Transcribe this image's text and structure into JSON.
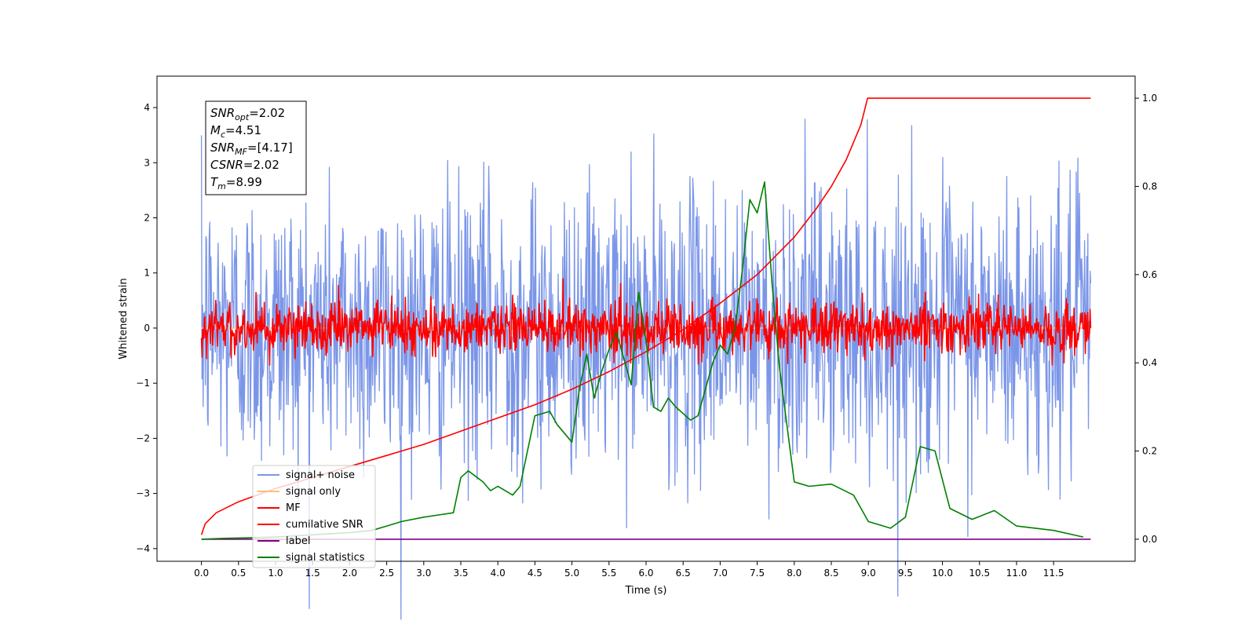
{
  "chart_data": {
    "type": "line",
    "xlabel": "Time (s)",
    "ylabel": "Whitened strain",
    "xlim": [
      -0.6,
      12.6
    ],
    "ylim": [
      -4.23,
      4.57
    ],
    "y2lim": [
      -0.05,
      1.05
    ],
    "x_ticks": [
      0.0,
      0.5,
      1.0,
      1.5,
      2.0,
      2.5,
      3.0,
      3.5,
      4.0,
      4.5,
      5.0,
      5.5,
      6.0,
      6.5,
      7.0,
      7.5,
      8.0,
      8.5,
      9.0,
      9.5,
      10.0,
      10.5,
      11.0,
      11.5
    ],
    "x_tick_labels": [
      "0.0",
      "0.5",
      "1.0",
      "1.5",
      "2.0",
      "2.5",
      "3.0",
      "3.5",
      "4.0",
      "4.5",
      "5.0",
      "5.5",
      "6.0",
      "6.5",
      "7.0",
      "7.5",
      "8.0",
      "8.5",
      "9.0",
      "9.5",
      "10.0",
      "10.5",
      "11.0",
      "11.5"
    ],
    "y_ticks": [
      4,
      3,
      2,
      1,
      0,
      -1,
      -2,
      -3,
      -4
    ],
    "y_tick_labels": [
      "4",
      "3",
      "2",
      "1",
      "0",
      "−1",
      "−2",
      "−3",
      "−4"
    ],
    "y2_ticks": [
      1.0,
      0.8,
      0.6,
      0.4,
      0.2,
      0.0
    ],
    "y2_tick_labels": [
      "1.0",
      "0.8",
      "0.6",
      "0.4",
      "0.2",
      "0.0"
    ],
    "annotation": {
      "lines": [
        {
          "sym": "SNR",
          "sub": "opt",
          "value": "=2.02"
        },
        {
          "sym": "M",
          "sub": "c",
          "value": "=4.51"
        },
        {
          "sym": "SNR",
          "sub": "MF",
          "value": "=[4.17]"
        },
        {
          "sym": "CSNR",
          "sub": "",
          "value": "=2.02"
        },
        {
          "sym": "T",
          "sub": "m",
          "value": "=8.99"
        }
      ]
    },
    "legend_position": "lower-left",
    "series": [
      {
        "name": "signal+ noise",
        "color": "#7b96e8",
        "axis": "left",
        "kind": "noise",
        "amplitude": 1.2,
        "x_range": [
          0,
          12
        ]
      },
      {
        "name": "signal only",
        "color": "#ffbf70",
        "axis": "left",
        "kind": "flat",
        "x_range": [
          0,
          12
        ]
      },
      {
        "name": "MF",
        "color": "#ff0000",
        "axis": "left",
        "kind": "noise",
        "amplitude": 0.25,
        "x_range": [
          0,
          12
        ]
      },
      {
        "name": "cumilative SNR",
        "color": "#ff0000",
        "axis": "right",
        "x": [
          0.0,
          0.05,
          0.2,
          0.5,
          1.0,
          1.5,
          2.0,
          2.5,
          3.0,
          3.5,
          4.0,
          4.5,
          5.0,
          5.5,
          6.0,
          6.5,
          7.0,
          7.5,
          8.0,
          8.3,
          8.5,
          8.7,
          8.9,
          8.99,
          9.0,
          12.0
        ],
        "y": [
          0.01,
          0.035,
          0.06,
          0.085,
          0.115,
          0.14,
          0.165,
          0.19,
          0.215,
          0.245,
          0.275,
          0.305,
          0.34,
          0.38,
          0.425,
          0.475,
          0.535,
          0.6,
          0.685,
          0.75,
          0.8,
          0.86,
          0.94,
          1.0,
          1.0,
          1.0
        ]
      },
      {
        "name": "label",
        "color": "#800080",
        "axis": "right",
        "x": [
          0.0,
          12.0
        ],
        "y": [
          0.0,
          0.0
        ]
      },
      {
        "name": "signal statistics",
        "color": "#008000",
        "axis": "right",
        "x": [
          0.0,
          0.3,
          0.6,
          1.0,
          1.5,
          2.0,
          2.3,
          2.5,
          2.7,
          3.0,
          3.2,
          3.4,
          3.5,
          3.6,
          3.8,
          3.9,
          4.0,
          4.2,
          4.3,
          4.5,
          4.7,
          4.8,
          5.0,
          5.1,
          5.2,
          5.3,
          5.4,
          5.5,
          5.6,
          5.7,
          5.8,
          5.9,
          6.0,
          6.1,
          6.2,
          6.3,
          6.4,
          6.6,
          6.7,
          6.9,
          7.0,
          7.1,
          7.2,
          7.3,
          7.4,
          7.5,
          7.6,
          7.7,
          7.8,
          8.0,
          8.2,
          8.5,
          8.8,
          9.0,
          9.3,
          9.5,
          9.7,
          9.9,
          10.1,
          10.4,
          10.7,
          11.0,
          11.5,
          11.9
        ],
        "y": [
          0.0,
          0.002,
          0.003,
          0.005,
          0.01,
          0.015,
          0.02,
          0.03,
          0.04,
          0.05,
          0.055,
          0.06,
          0.14,
          0.155,
          0.13,
          0.11,
          0.12,
          0.1,
          0.12,
          0.28,
          0.29,
          0.26,
          0.22,
          0.34,
          0.42,
          0.32,
          0.38,
          0.43,
          0.47,
          0.41,
          0.35,
          0.56,
          0.45,
          0.3,
          0.29,
          0.32,
          0.3,
          0.27,
          0.28,
          0.4,
          0.44,
          0.42,
          0.48,
          0.61,
          0.77,
          0.74,
          0.81,
          0.58,
          0.39,
          0.13,
          0.12,
          0.125,
          0.1,
          0.04,
          0.025,
          0.05,
          0.21,
          0.2,
          0.07,
          0.045,
          0.065,
          0.03,
          0.02,
          0.005
        ]
      }
    ]
  }
}
